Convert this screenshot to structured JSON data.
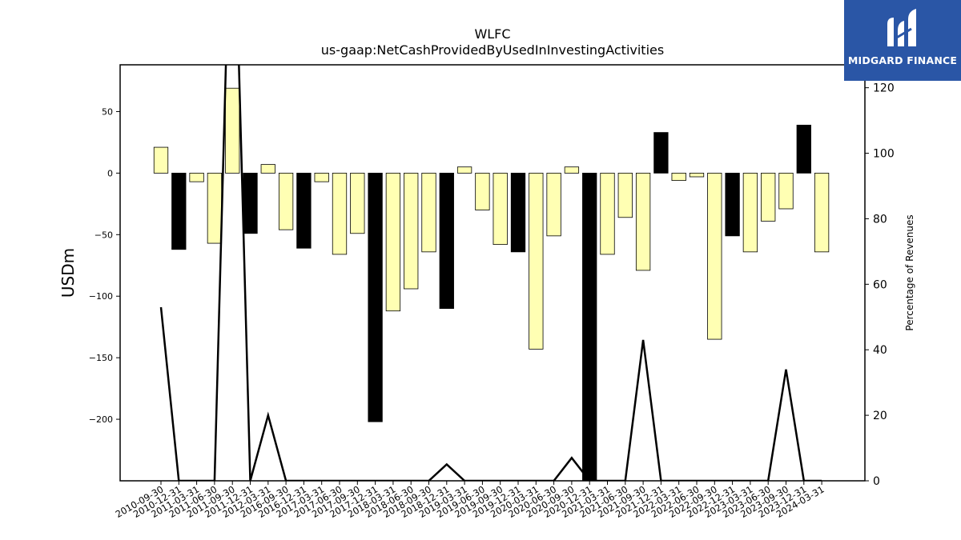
{
  "chart_data": {
    "type": "bar",
    "title": "WLFC",
    "subtitle": "us-gaap:NetCashProvidedByUsedInInvestingActivities",
    "ylabel": "USDm",
    "y2label": "Percentage of Revenues",
    "ylim": [
      -250,
      88
    ],
    "y2lim": [
      0,
      127
    ],
    "yticks": [
      -200,
      -150,
      -100,
      -50,
      0,
      50
    ],
    "y2ticks": [
      0,
      20,
      40,
      60,
      80,
      100,
      120
    ],
    "categories": [
      "2010-09-30",
      "2010-12-31",
      "2011-03-31",
      "2011-06-30",
      "2011-09-30",
      "2011-12-31",
      "2012-03-31",
      "2016-09-30",
      "2016-12-31",
      "2017-03-31",
      "2017-06-30",
      "2017-09-30",
      "2017-12-31",
      "2018-03-31",
      "2018-06-30",
      "2018-09-30",
      "2018-12-31",
      "2019-03-31",
      "2019-06-30",
      "2019-09-30",
      "2019-12-31",
      "2020-03-31",
      "2020-06-30",
      "2020-09-30",
      "2020-12-31",
      "2021-03-31",
      "2021-06-30",
      "2021-09-30",
      "2021-12-31",
      "2022-03-31",
      "2022-06-30",
      "2022-09-30",
      "2022-12-31",
      "2023-03-31",
      "2023-06-30",
      "2023-09-30",
      "2023-12-31",
      "2024-03-31"
    ],
    "series": [
      {
        "type": "bar",
        "values": [
          21,
          -62,
          -7,
          -57,
          69,
          -49,
          7,
          -46,
          -61,
          -7,
          -66,
          -49,
          -202,
          -112,
          -94,
          -64,
          -110,
          5,
          -30,
          -58,
          -64,
          -143,
          -51,
          5,
          -250,
          -66,
          -36,
          -79,
          33,
          -6,
          -3,
          -135,
          -51,
          -64,
          -39,
          -29,
          39,
          -64
        ],
        "colors": [
          "#ffffb3",
          "#000000",
          "#ffffb3",
          "#ffffb3",
          "#ffffb3",
          "#000000",
          "#ffffb3",
          "#ffffb3",
          "#000000",
          "#ffffb3",
          "#ffffb3",
          "#ffffb3",
          "#000000",
          "#ffffb3",
          "#ffffb3",
          "#ffffb3",
          "#000000",
          "#ffffb3",
          "#ffffb3",
          "#ffffb3",
          "#000000",
          "#ffffb3",
          "#ffffb3",
          "#ffffb3",
          "#000000",
          "#ffffb3",
          "#ffffb3",
          "#ffffb3",
          "#000000",
          "#ffffb3",
          "#ffffb3",
          "#ffffb3",
          "#000000",
          "#ffffb3",
          "#ffffb3",
          "#ffffb3",
          "#000000",
          "#ffffb3"
        ]
      },
      {
        "type": "line",
        "axis": "right",
        "color": "#000000",
        "values": [
          53,
          0,
          0,
          0,
          200,
          0,
          20,
          0,
          0,
          0,
          0,
          0,
          0,
          0,
          0,
          0,
          5,
          0,
          0,
          0,
          0,
          0,
          0,
          7,
          0,
          0,
          0,
          43,
          0,
          0,
          0,
          0,
          0,
          0,
          0,
          34,
          0,
          0
        ]
      }
    ],
    "grid": false
  },
  "logo": {
    "text": "MIDGARD FINANCE",
    "background": "#2a56a6"
  }
}
